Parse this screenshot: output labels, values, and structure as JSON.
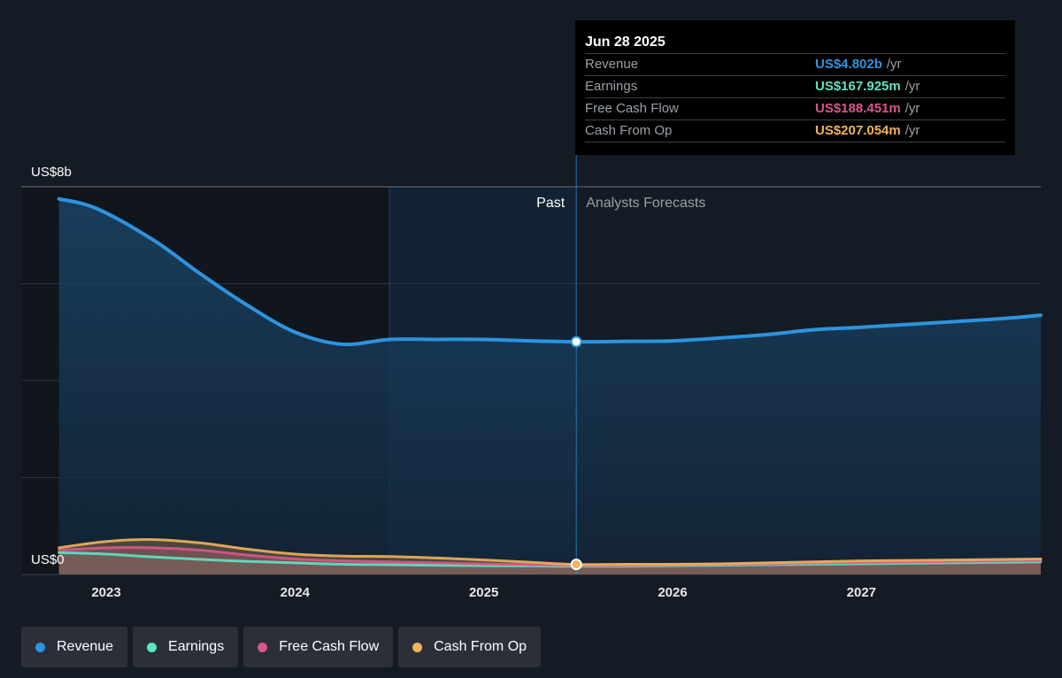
{
  "tooltip": {
    "date": "Jun 28 2025",
    "rows": [
      {
        "label": "Revenue",
        "value": "US$4.802b",
        "unit": "/yr",
        "color": "#2c94e0"
      },
      {
        "label": "Earnings",
        "value": "US$167.925m",
        "unit": "/yr",
        "color": "#5fe3c4"
      },
      {
        "label": "Free Cash Flow",
        "value": "US$188.451m",
        "unit": "/yr",
        "color": "#d9578b"
      },
      {
        "label": "Cash From Op",
        "value": "US$207.054m",
        "unit": "/yr",
        "color": "#f0b35a"
      }
    ]
  },
  "legend": [
    {
      "label": "Revenue",
      "color": "#2c94e0"
    },
    {
      "label": "Earnings",
      "color": "#5fe3c4"
    },
    {
      "label": "Free Cash Flow",
      "color": "#d9578b"
    },
    {
      "label": "Cash From Op",
      "color": "#f0b35a"
    }
  ],
  "chart_data": {
    "type": "area",
    "x_unit": "year",
    "xlim": [
      2022.55,
      2027.95
    ],
    "ylim": [
      0,
      8
    ],
    "y_unit": "US$b",
    "y_tick_labels": [
      "US$0",
      "US$8b"
    ],
    "y_gridlines": [
      0,
      2,
      4,
      6,
      8
    ],
    "x_ticks": [
      2023,
      2024,
      2025,
      2026,
      2027
    ],
    "x_tick_labels": [
      "2023",
      "2024",
      "2025",
      "2026",
      "2027"
    ],
    "past_label": "Past",
    "forecast_label": "Analysts Forecasts",
    "divider_x": 2025.49,
    "highlight_start_x": 2024.5,
    "series": [
      {
        "name": "Revenue",
        "color": "#2c94e0",
        "x": [
          2022.75,
          2022.95,
          2023.25,
          2023.5,
          2023.75,
          2024.0,
          2024.25,
          2024.5,
          2024.75,
          2025.0,
          2025.25,
          2025.49,
          2025.75,
          2026.0,
          2026.25,
          2026.5,
          2026.75,
          2027.0,
          2027.25,
          2027.5,
          2027.75,
          2027.95
        ],
        "values": [
          7.75,
          7.55,
          6.9,
          6.2,
          5.55,
          5.0,
          4.75,
          4.85,
          4.85,
          4.85,
          4.82,
          4.802,
          4.81,
          4.82,
          4.88,
          4.95,
          5.05,
          5.1,
          5.16,
          5.22,
          5.28,
          5.35
        ]
      },
      {
        "name": "Earnings",
        "color": "#5fe3c4",
        "x": [
          2022.75,
          2023.0,
          2023.25,
          2023.5,
          2023.75,
          2024.0,
          2024.25,
          2024.5,
          2024.75,
          2025.0,
          2025.25,
          2025.49,
          2025.75,
          2026.0,
          2026.25,
          2026.5,
          2026.75,
          2027.0,
          2027.25,
          2027.5,
          2027.75,
          2027.95
        ],
        "values": [
          0.45,
          0.42,
          0.36,
          0.31,
          0.27,
          0.24,
          0.21,
          0.2,
          0.19,
          0.18,
          0.175,
          0.168,
          0.17,
          0.18,
          0.19,
          0.2,
          0.21,
          0.22,
          0.23,
          0.24,
          0.25,
          0.26
        ]
      },
      {
        "name": "Free Cash Flow",
        "color": "#d9578b",
        "x": [
          2022.75,
          2023.0,
          2023.25,
          2023.5,
          2023.75,
          2024.0,
          2024.25,
          2024.5,
          2024.75,
          2025.0,
          2025.25,
          2025.49,
          2025.75,
          2026.0,
          2026.25,
          2026.5,
          2026.75,
          2027.0,
          2027.25,
          2027.5,
          2027.75,
          2027.95
        ],
        "values": [
          0.5,
          0.55,
          0.55,
          0.5,
          0.4,
          0.32,
          0.28,
          0.26,
          0.24,
          0.22,
          0.2,
          0.188,
          0.19,
          0.2,
          0.21,
          0.22,
          0.24,
          0.25,
          0.26,
          0.27,
          0.28,
          0.29
        ]
      },
      {
        "name": "Cash From Op",
        "color": "#f0b35a",
        "x": [
          2022.75,
          2023.0,
          2023.25,
          2023.5,
          2023.75,
          2024.0,
          2024.25,
          2024.5,
          2024.75,
          2025.0,
          2025.25,
          2025.49,
          2025.75,
          2026.0,
          2026.25,
          2026.5,
          2026.75,
          2027.0,
          2027.25,
          2027.5,
          2027.75,
          2027.95
        ],
        "values": [
          0.55,
          0.68,
          0.72,
          0.65,
          0.52,
          0.42,
          0.38,
          0.37,
          0.34,
          0.3,
          0.25,
          0.207,
          0.21,
          0.21,
          0.22,
          0.24,
          0.26,
          0.28,
          0.29,
          0.3,
          0.31,
          0.32
        ]
      }
    ]
  }
}
